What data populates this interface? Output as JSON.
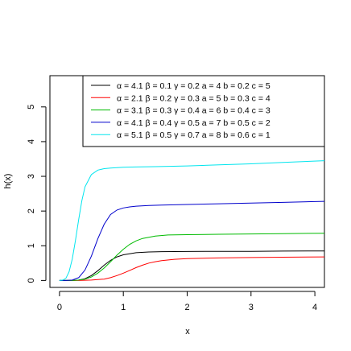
{
  "chart_data": {
    "type": "line",
    "xlabel": "x",
    "ylabel": "h(x)",
    "xlim": [
      -0.15,
      4.15
    ],
    "ylim": [
      -0.2,
      5.9
    ],
    "x_ticks": [
      0,
      1,
      2,
      3,
      4
    ],
    "y_ticks": [
      0,
      1,
      2,
      3,
      4,
      5
    ],
    "x_tick_labels": [
      "0",
      "1",
      "2",
      "3",
      "4"
    ],
    "y_tick_labels": [
      "0",
      "1",
      "2",
      "3",
      "4",
      "5"
    ],
    "legend_position": "top-right",
    "series": [
      {
        "name": "α = 4.1   β = 0.1   γ = 0.2   a = 4   b = 0.2   c = 5",
        "color": "#000000",
        "x": [
          0,
          0.2,
          0.3,
          0.4,
          0.5,
          0.6,
          0.7,
          0.8,
          0.9,
          1.0,
          1.2,
          1.4,
          1.6,
          2.0,
          2.5,
          3.0,
          3.5,
          4.15
        ],
        "y": [
          0,
          0,
          0.01,
          0.05,
          0.14,
          0.28,
          0.44,
          0.58,
          0.68,
          0.74,
          0.8,
          0.82,
          0.83,
          0.835,
          0.84,
          0.84,
          0.845,
          0.85
        ]
      },
      {
        "name": "α = 2.1   β = 0.2   γ = 0.3   a = 5   b = 0.3   c = 4",
        "color": "#ff0000",
        "x": [
          0,
          0.3,
          0.5,
          0.7,
          0.8,
          0.9,
          1.0,
          1.1,
          1.2,
          1.3,
          1.4,
          1.5,
          1.6,
          1.8,
          2.0,
          2.5,
          3.0,
          3.5,
          4.15
        ],
        "y": [
          0,
          0,
          0.01,
          0.04,
          0.08,
          0.14,
          0.21,
          0.29,
          0.37,
          0.44,
          0.5,
          0.54,
          0.57,
          0.61,
          0.63,
          0.65,
          0.66,
          0.67,
          0.68
        ]
      },
      {
        "name": "α = 3.1   β = 0.3   γ = 0.4   a = 6   b = 0.4   c = 3",
        "color": "#00bb00",
        "x": [
          0,
          0.2,
          0.3,
          0.4,
          0.5,
          0.6,
          0.7,
          0.8,
          0.9,
          1.0,
          1.1,
          1.2,
          1.3,
          1.5,
          1.7,
          2.0,
          2.5,
          3.0,
          3.5,
          4.15
        ],
        "y": [
          0,
          0,
          0.01,
          0.04,
          0.1,
          0.21,
          0.36,
          0.54,
          0.73,
          0.9,
          1.04,
          1.14,
          1.21,
          1.28,
          1.31,
          1.32,
          1.33,
          1.34,
          1.35,
          1.36
        ]
      },
      {
        "name": "α = 4.1   β = 0.4   γ = 0.5   a = 7   b = 0.5   c = 2",
        "color": "#0000cc",
        "x": [
          0,
          0.1,
          0.2,
          0.3,
          0.4,
          0.5,
          0.6,
          0.7,
          0.8,
          0.9,
          1.0,
          1.1,
          1.2,
          1.4,
          1.6,
          2.0,
          2.5,
          3.0,
          3.5,
          4.15
        ],
        "y": [
          0,
          0,
          0.01,
          0.08,
          0.3,
          0.7,
          1.2,
          1.62,
          1.9,
          2.03,
          2.09,
          2.12,
          2.14,
          2.16,
          2.17,
          2.19,
          2.21,
          2.23,
          2.25,
          2.28
        ]
      },
      {
        "name": "α = 5.1   β = 0.5   γ = 0.7   a = 8   b = 0.6   c = 1",
        "color": "#00e5ee",
        "x": [
          0,
          0.05,
          0.1,
          0.15,
          0.2,
          0.25,
          0.3,
          0.35,
          0.4,
          0.5,
          0.6,
          0.7,
          0.8,
          0.9,
          1.0,
          1.2,
          1.5,
          2.0,
          2.5,
          3.0,
          3.5,
          4.15
        ],
        "y": [
          0,
          0.01,
          0.06,
          0.25,
          0.62,
          1.15,
          1.75,
          2.3,
          2.7,
          3.05,
          3.18,
          3.22,
          3.24,
          3.25,
          3.26,
          3.27,
          3.28,
          3.3,
          3.33,
          3.36,
          3.4,
          3.45
        ]
      }
    ]
  }
}
